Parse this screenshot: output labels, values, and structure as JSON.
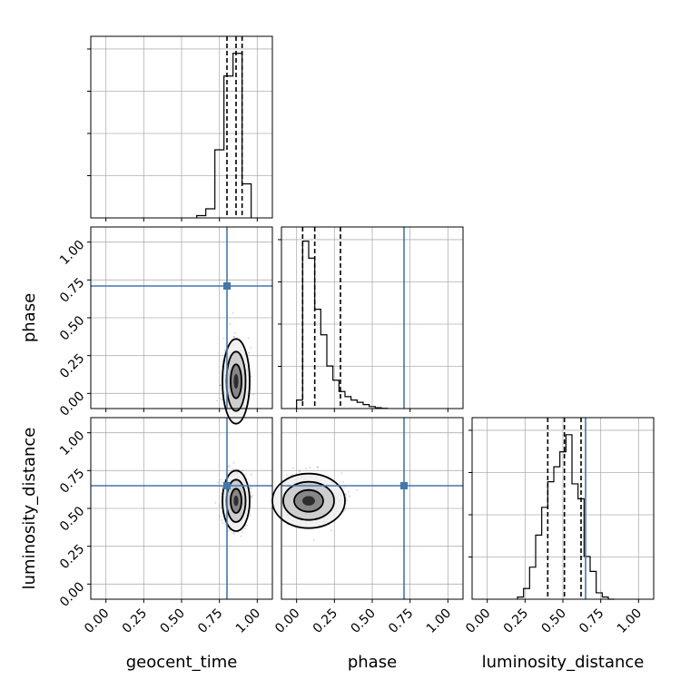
{
  "chart_data": {
    "type": "corner",
    "parameters": [
      "geocent_time",
      "phase",
      "luminosity_distance"
    ],
    "axis_range": [
      -0.1,
      1.1
    ],
    "ticks": [
      0.0,
      0.25,
      0.5,
      0.75,
      1.0
    ],
    "tick_labels": [
      "0.00",
      "0.25",
      "0.50",
      "0.75",
      "1.00"
    ],
    "grid": true,
    "truth_color": "#4477aa",
    "truths": {
      "geocent_time": 0.8,
      "phase": 0.71,
      "luminosity_distance": 0.65
    },
    "histograms": {
      "geocent_time": {
        "bin_edges": [
          0.6,
          0.66,
          0.72,
          0.78,
          0.84,
          0.9,
          0.96
        ],
        "counts": [
          0.02,
          0.08,
          0.6,
          1.25,
          1.45,
          0.3
        ],
        "ymax": 1.6,
        "quantiles": [
          0.8,
          0.86,
          0.9
        ]
      },
      "phase": {
        "bin_edges": [
          0.0,
          0.04,
          0.08,
          0.12,
          0.16,
          0.2,
          0.24,
          0.28,
          0.32,
          0.36,
          0.4,
          0.44,
          0.48,
          0.52,
          0.56,
          0.6
        ],
        "counts": [
          0.3,
          5.9,
          5.3,
          3.5,
          2.6,
          1.5,
          1.0,
          0.6,
          0.42,
          0.3,
          0.22,
          0.14,
          0.07,
          0.03,
          0.01
        ],
        "ymax": 6.4,
        "quantiles": [
          0.04,
          0.12,
          0.29
        ]
      },
      "luminosity_distance": {
        "bin_edges": [
          0.2,
          0.24,
          0.28,
          0.32,
          0.36,
          0.4,
          0.44,
          0.48,
          0.52,
          0.56,
          0.6,
          0.64,
          0.68,
          0.72,
          0.76,
          0.8,
          0.84
        ],
        "counts": [
          0.01,
          0.05,
          0.15,
          0.3,
          0.43,
          0.55,
          0.62,
          0.69,
          0.77,
          0.54,
          0.47,
          0.2,
          0.13,
          0.03,
          0.01,
          0.0
        ],
        "ymax": 0.85,
        "quantiles": [
          0.4,
          0.51,
          0.62
        ]
      }
    },
    "joint": [
      {
        "x": "geocent_time",
        "y": "phase",
        "center": [
          0.86,
          0.08
        ],
        "spread": [
          0.045,
          0.14
        ]
      },
      {
        "x": "geocent_time",
        "y": "luminosity_distance",
        "center": [
          0.86,
          0.55
        ],
        "spread": [
          0.045,
          0.1
        ]
      },
      {
        "x": "phase",
        "y": "luminosity_distance",
        "center": [
          0.08,
          0.55
        ],
        "spread": [
          0.12,
          0.09
        ]
      }
    ]
  }
}
